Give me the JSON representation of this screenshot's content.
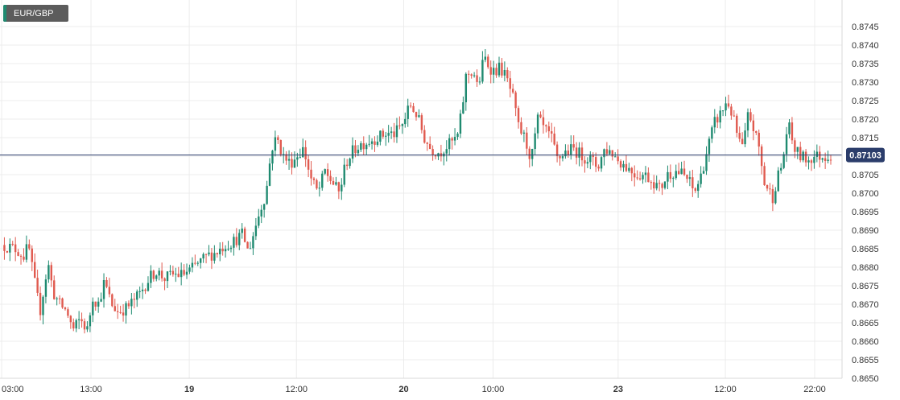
{
  "legend": {
    "symbol": "EUR/GBP"
  },
  "chart_data": {
    "type": "candlestick",
    "symbol": "EUR/GBP",
    "ylim": [
      0.865,
      0.8748
    ],
    "y_ticks": [
      "0.8650",
      "0.8655",
      "0.8660",
      "0.8665",
      "0.8670",
      "0.8675",
      "0.8680",
      "0.8685",
      "0.8690",
      "0.8695",
      "0.8700",
      "0.8705",
      "0.8710",
      "0.8715",
      "0.8720",
      "0.8725",
      "0.8730",
      "0.8735",
      "0.8740",
      "0.8745"
    ],
    "x_ticks": [
      {
        "label": "03:00",
        "bold": false,
        "x": 0
      },
      {
        "label": "13:00",
        "bold": false,
        "x": 10
      },
      {
        "label": "19",
        "bold": true,
        "x": 21
      },
      {
        "label": "12:00",
        "bold": false,
        "x": 33
      },
      {
        "label": "20",
        "bold": true,
        "x": 45
      },
      {
        "label": "10:00",
        "bold": false,
        "x": 55
      },
      {
        "label": "23",
        "bold": true,
        "x": 69
      },
      {
        "label": "12:00",
        "bold": false,
        "x": 81
      },
      {
        "label": "22:00",
        "bold": false,
        "x": 91
      }
    ],
    "current_price": "0.87103",
    "current_value": 0.87103,
    "path": [
      [
        0,
        0.8686
      ],
      [
        1.5,
        0.8685
      ],
      [
        2.5,
        0.8683
      ],
      [
        3,
        0.8686
      ],
      [
        3.6,
        0.8677
      ],
      [
        4.3,
        0.8668
      ],
      [
        5.2,
        0.8681
      ],
      [
        5.8,
        0.8673
      ],
      [
        6.5,
        0.867
      ],
      [
        7.3,
        0.8668
      ],
      [
        8.0,
        0.8663
      ],
      [
        8.8,
        0.8666
      ],
      [
        9.6,
        0.8663
      ],
      [
        10.2,
        0.8672
      ],
      [
        10.8,
        0.867
      ],
      [
        11.5,
        0.8676
      ],
      [
        12.3,
        0.867
      ],
      [
        13.0,
        0.8668
      ],
      [
        14.0,
        0.8669
      ],
      [
        14.8,
        0.8671
      ],
      [
        15.5,
        0.8673
      ],
      [
        16.5,
        0.8677
      ],
      [
        17.3,
        0.8679
      ],
      [
        18.2,
        0.8677
      ],
      [
        19.2,
        0.8678
      ],
      [
        20.2,
        0.8678
      ],
      [
        21.0,
        0.8679
      ],
      [
        22.0,
        0.8681
      ],
      [
        23.0,
        0.8683
      ],
      [
        24.0,
        0.8684
      ],
      [
        25.0,
        0.8686
      ],
      [
        26.0,
        0.8687
      ],
      [
        27.0,
        0.8689
      ],
      [
        27.6,
        0.8684
      ],
      [
        28.3,
        0.869
      ],
      [
        29.0,
        0.8696
      ],
      [
        29.6,
        0.87
      ],
      [
        30.2,
        0.8712
      ],
      [
        30.8,
        0.8715
      ],
      [
        31.5,
        0.871
      ],
      [
        32.3,
        0.8708
      ],
      [
        33.0,
        0.871
      ],
      [
        33.8,
        0.8712
      ],
      [
        34.6,
        0.8704
      ],
      [
        35.4,
        0.87
      ],
      [
        36.2,
        0.8706
      ],
      [
        37.0,
        0.8703
      ],
      [
        37.8,
        0.87
      ],
      [
        38.5,
        0.8708
      ],
      [
        39.2,
        0.8711
      ],
      [
        40.0,
        0.8713
      ],
      [
        41.0,
        0.8714
      ],
      [
        42.0,
        0.8715
      ],
      [
        43.0,
        0.8716
      ],
      [
        44.0,
        0.8716
      ],
      [
        45.0,
        0.8719
      ],
      [
        45.7,
        0.8724
      ],
      [
        46.5,
        0.8721
      ],
      [
        47.3,
        0.8715
      ],
      [
        48.0,
        0.8712
      ],
      [
        49.0,
        0.8711
      ],
      [
        50.0,
        0.8713
      ],
      [
        51.0,
        0.8715
      ],
      [
        51.5,
        0.8722
      ],
      [
        52.0,
        0.8732
      ],
      [
        52.8,
        0.8733
      ],
      [
        53.3,
        0.8728
      ],
      [
        54.0,
        0.8737
      ],
      [
        54.6,
        0.8734
      ],
      [
        55.2,
        0.8733
      ],
      [
        55.8,
        0.8734
      ],
      [
        56.5,
        0.8731
      ],
      [
        57.2,
        0.8726
      ],
      [
        57.8,
        0.8718
      ],
      [
        58.5,
        0.8715
      ],
      [
        59.3,
        0.8709
      ],
      [
        60.0,
        0.872
      ],
      [
        60.8,
        0.8717
      ],
      [
        61.5,
        0.8715
      ],
      [
        62.2,
        0.8709
      ],
      [
        63.0,
        0.8711
      ],
      [
        64.0,
        0.8712
      ],
      [
        65.0,
        0.871
      ],
      [
        66.0,
        0.8709
      ],
      [
        66.7,
        0.8707
      ],
      [
        67.5,
        0.8712
      ],
      [
        68.3,
        0.8711
      ],
      [
        69.0,
        0.8709
      ],
      [
        70.0,
        0.8707
      ],
      [
        71.0,
        0.8705
      ],
      [
        72.0,
        0.8705
      ],
      [
        73.0,
        0.8703
      ],
      [
        73.7,
        0.8701
      ],
      [
        74.5,
        0.8705
      ],
      [
        75.5,
        0.8706
      ],
      [
        76.3,
        0.8705
      ],
      [
        77.0,
        0.8703
      ],
      [
        77.5,
        0.87
      ],
      [
        78.2,
        0.8704
      ],
      [
        79.0,
        0.8712
      ],
      [
        79.8,
        0.8719
      ],
      [
        80.6,
        0.8722
      ],
      [
        81.2,
        0.8725
      ],
      [
        81.8,
        0.8721
      ],
      [
        82.5,
        0.8714
      ],
      [
        83.0,
        0.8712
      ],
      [
        83.6,
        0.8722
      ],
      [
        84.2,
        0.8717
      ],
      [
        84.8,
        0.8712
      ],
      [
        85.3,
        0.8703
      ],
      [
        85.8,
        0.8701
      ],
      [
        86.3,
        0.8699
      ],
      [
        86.8,
        0.8704
      ],
      [
        87.4,
        0.8708
      ],
      [
        88.0,
        0.8719
      ],
      [
        88.7,
        0.8712
      ],
      [
        89.4,
        0.871
      ],
      [
        90.2,
        0.8709
      ],
      [
        91.0,
        0.871
      ],
      [
        92.0,
        0.871
      ],
      [
        92.8,
        0.87103
      ]
    ]
  }
}
